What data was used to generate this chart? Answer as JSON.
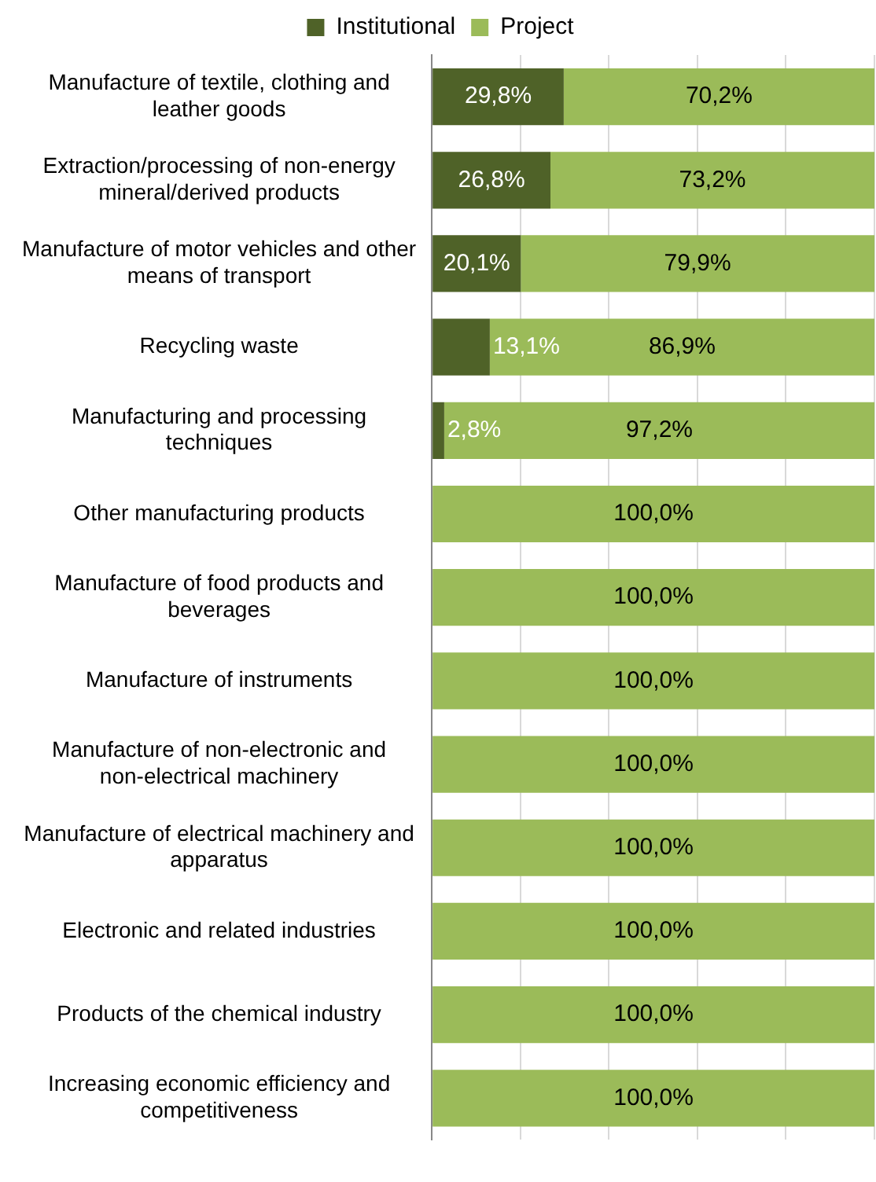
{
  "chart_data": {
    "type": "bar",
    "orientation": "horizontal",
    "stacked": true,
    "categories": [
      "Manufacture of textile, clothing and leather goods",
      "Extraction/processing of non-energy mineral/derived products",
      "Manufacture of motor vehicles and other means of transport",
      "Recycling waste",
      "Manufacturing and processing techniques",
      "Other manufacturing products",
      "Manufacture of food products and beverages",
      "Manufacture of instruments",
      "Manufacture of non-electronic and non-electrical machinery",
      "Manufacture of electrical machinery and apparatus",
      "Electronic and related industries",
      "Products of the chemical industry",
      "Increasing economic efficiency and competitiveness"
    ],
    "series": [
      {
        "name": "Institutional",
        "color": "#4f6228",
        "values": [
          29.8,
          26.8,
          20.1,
          13.1,
          2.8,
          0,
          0,
          0,
          0,
          0,
          0,
          0,
          0
        ],
        "value_labels": [
          "29,8%",
          "26,8%",
          "20,1%",
          "13,1%",
          "2,8%",
          null,
          null,
          null,
          null,
          null,
          null,
          null,
          null
        ]
      },
      {
        "name": "Project",
        "color": "#9bbb59",
        "values": [
          70.2,
          73.2,
          79.9,
          86.9,
          97.2,
          100,
          100,
          100,
          100,
          100,
          100,
          100,
          100
        ],
        "value_labels": [
          "70,2%",
          "73,2%",
          "79,9%",
          "86,9%",
          "97,2%",
          "100,0%",
          "100,0%",
          "100,0%",
          "100,0%",
          "100,0%",
          "100,0%",
          "100,0%",
          "100,0%"
        ]
      }
    ],
    "xlim": [
      0,
      100
    ],
    "xticks": [
      {
        "value": 0,
        "label": null
      },
      {
        "value": 20,
        "label": null
      },
      {
        "value": 40,
        "label": null
      },
      {
        "value": 60,
        "label": null
      },
      {
        "value": 80,
        "label": null
      },
      {
        "value": 100,
        "label": null
      }
    ],
    "tick_labels": "y",
    "grid": "x",
    "legend": "top"
  }
}
